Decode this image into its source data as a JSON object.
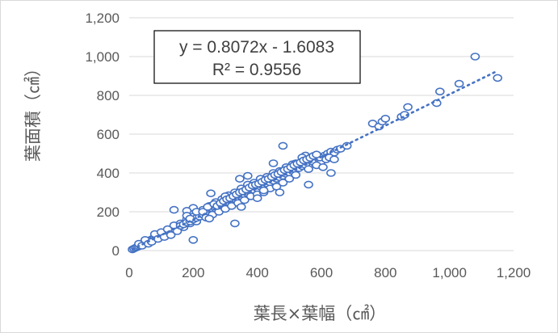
{
  "chart_data": {
    "type": "scatter",
    "xlabel": "葉長×葉幅（㎠）",
    "ylabel": "葉面積（㎠）",
    "xlim": [
      0,
      1200
    ],
    "ylim": [
      0,
      1200
    ],
    "x_ticks": [
      "0",
      "200",
      "400",
      "600",
      "800",
      "1,000",
      "1,200"
    ],
    "y_ticks": [
      "0",
      "200",
      "400",
      "600",
      "800",
      "1,000",
      "1,200"
    ],
    "grid": "horizontal",
    "trendline": {
      "type": "linear",
      "slope": 0.8072,
      "intercept": -1.6083,
      "x_range": [
        10,
        1150
      ],
      "equation_label": "y = 0.8072x - 1.6083",
      "r2_label": "R² = 0.9556"
    },
    "series": [
      {
        "points": [
          [
            10,
            6
          ],
          [
            15,
            10
          ],
          [
            20,
            14
          ],
          [
            25,
            18
          ],
          [
            30,
            22
          ],
          [
            35,
            26
          ],
          [
            40,
            32
          ],
          [
            45,
            35
          ],
          [
            50,
            40
          ],
          [
            55,
            42
          ],
          [
            60,
            48
          ],
          [
            65,
            52
          ],
          [
            70,
            58
          ],
          [
            75,
            60
          ],
          [
            80,
            64
          ],
          [
            85,
            70
          ],
          [
            90,
            72
          ],
          [
            95,
            78
          ],
          [
            100,
            80
          ],
          [
            105,
            84
          ],
          [
            110,
            90
          ],
          [
            115,
            92
          ],
          [
            120,
            96
          ],
          [
            125,
            100
          ],
          [
            130,
            104
          ],
          [
            135,
            110
          ],
          [
            140,
            112
          ],
          [
            145,
            118
          ],
          [
            150,
            120
          ],
          [
            155,
            124
          ],
          [
            30,
            35
          ],
          [
            40,
            25
          ],
          [
            50,
            55
          ],
          [
            60,
            35
          ],
          [
            70,
            45
          ],
          [
            80,
            85
          ],
          [
            90,
            60
          ],
          [
            100,
            95
          ],
          [
            110,
            70
          ],
          [
            120,
            110
          ],
          [
            130,
            80
          ],
          [
            140,
            130
          ],
          [
            150,
            100
          ],
          [
            160,
            140
          ],
          [
            170,
            120
          ],
          [
            180,
            160
          ],
          [
            190,
            140
          ],
          [
            200,
            175
          ],
          [
            210,
            150
          ],
          [
            220,
            190
          ],
          [
            160,
            128
          ],
          [
            170,
            135
          ],
          [
            180,
            145
          ],
          [
            190,
            150
          ],
          [
            200,
            160
          ],
          [
            210,
            168
          ],
          [
            220,
            175
          ],
          [
            230,
            185
          ],
          [
            240,
            190
          ],
          [
            250,
            200
          ],
          [
            260,
            210
          ],
          [
            270,
            215
          ],
          [
            280,
            225
          ],
          [
            290,
            232
          ],
          [
            300,
            240
          ],
          [
            310,
            250
          ],
          [
            320,
            255
          ],
          [
            330,
            265
          ],
          [
            340,
            272
          ],
          [
            350,
            280
          ],
          [
            360,
            290
          ],
          [
            370,
            296
          ],
          [
            380,
            305
          ],
          [
            390,
            312
          ],
          [
            400,
            320
          ],
          [
            410,
            330
          ],
          [
            420,
            336
          ],
          [
            430,
            345
          ],
          [
            440,
            352
          ],
          [
            450,
            360
          ],
          [
            460,
            370
          ],
          [
            470,
            378
          ],
          [
            480,
            385
          ],
          [
            490,
            395
          ],
          [
            500,
            402
          ],
          [
            510,
            410
          ],
          [
            520,
            418
          ],
          [
            530,
            425
          ],
          [
            540,
            435
          ],
          [
            550,
            442
          ],
          [
            230,
            210
          ],
          [
            240,
            170
          ],
          [
            250,
            230
          ],
          [
            260,
            185
          ],
          [
            270,
            250
          ],
          [
            280,
            200
          ],
          [
            290,
            265
          ],
          [
            300,
            215
          ],
          [
            310,
            285
          ],
          [
            320,
            230
          ],
          [
            330,
            300
          ],
          [
            340,
            245
          ],
          [
            350,
            320
          ],
          [
            360,
            260
          ],
          [
            370,
            340
          ],
          [
            380,
            280
          ],
          [
            390,
            350
          ],
          [
            400,
            290
          ],
          [
            410,
            370
          ],
          [
            420,
            300
          ],
          [
            430,
            380
          ],
          [
            440,
            320
          ],
          [
            450,
            400
          ],
          [
            460,
            330
          ],
          [
            470,
            410
          ],
          [
            480,
            350
          ],
          [
            490,
            430
          ],
          [
            500,
            370
          ],
          [
            510,
            445
          ],
          [
            520,
            390
          ],
          [
            140,
            210
          ],
          [
            255,
            295
          ],
          [
            200,
            220
          ],
          [
            180,
            205
          ],
          [
            345,
            370
          ],
          [
            370,
            385
          ],
          [
            400,
            270
          ],
          [
            450,
            450
          ],
          [
            480,
            540
          ],
          [
            560,
            480
          ],
          [
            560,
            340
          ],
          [
            630,
            400
          ],
          [
            200,
            55
          ],
          [
            330,
            140
          ],
          [
            250,
            165
          ],
          [
            300,
            280
          ],
          [
            350,
            225
          ],
          [
            420,
            310
          ],
          [
            470,
            300
          ],
          [
            520,
            450
          ],
          [
            580,
            450
          ],
          [
            590,
            470
          ],
          [
            600,
            460
          ],
          [
            610,
            490
          ],
          [
            620,
            500
          ],
          [
            630,
            510
          ],
          [
            640,
            505
          ],
          [
            650,
            520
          ],
          [
            660,
            525
          ],
          [
            680,
            540
          ],
          [
            570,
            460
          ],
          [
            585,
            440
          ],
          [
            595,
            480
          ],
          [
            605,
            430
          ],
          [
            615,
            470
          ],
          [
            625,
            480
          ],
          [
            640,
            470
          ],
          [
            550,
            490
          ],
          [
            560,
            420
          ],
          [
            540,
            480
          ],
          [
            760,
            655
          ],
          [
            780,
            640
          ],
          [
            790,
            665
          ],
          [
            800,
            680
          ],
          [
            850,
            690
          ],
          [
            860,
            700
          ],
          [
            870,
            740
          ],
          [
            960,
            760
          ],
          [
            970,
            820
          ],
          [
            1030,
            860
          ],
          [
            1080,
            1000
          ],
          [
            1150,
            890
          ],
          [
            180,
            180
          ],
          [
            190,
            165
          ],
          [
            210,
            200
          ],
          [
            230,
            200
          ],
          [
            245,
            225
          ],
          [
            265,
            240
          ],
          [
            275,
            230
          ],
          [
            285,
            245
          ],
          [
            295,
            255
          ],
          [
            305,
            265
          ],
          [
            315,
            270
          ],
          [
            325,
            280
          ],
          [
            335,
            290
          ],
          [
            345,
            300
          ],
          [
            355,
            305
          ],
          [
            365,
            315
          ],
          [
            375,
            325
          ],
          [
            385,
            335
          ],
          [
            395,
            340
          ],
          [
            405,
            345
          ],
          [
            415,
            355
          ],
          [
            425,
            365
          ],
          [
            435,
            370
          ],
          [
            445,
            380
          ],
          [
            455,
            390
          ],
          [
            465,
            395
          ],
          [
            475,
            405
          ],
          [
            485,
            415
          ],
          [
            495,
            420
          ],
          [
            505,
            430
          ],
          [
            515,
            440
          ],
          [
            525,
            448
          ],
          [
            535,
            455
          ],
          [
            545,
            465
          ],
          [
            555,
            470
          ],
          [
            565,
            478
          ],
          [
            575,
            488
          ],
          [
            585,
            495
          ]
        ]
      }
    ]
  }
}
